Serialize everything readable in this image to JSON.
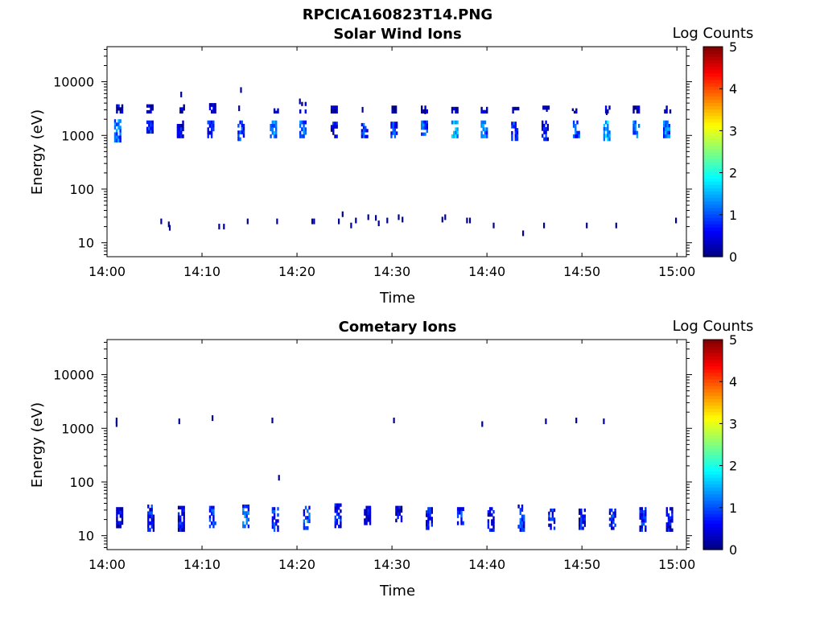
{
  "figure_title": "RPCICA160823T14.PNG",
  "chart_data": [
    {
      "type": "heatmap",
      "title": "Solar Wind Ions",
      "xlabel": "Time",
      "ylabel": "Energy (eV)",
      "x_ticks": [
        "14:00",
        "14:10",
        "14:20",
        "14:30",
        "14:40",
        "14:50",
        "15:00"
      ],
      "x_range_min": [
        0,
        61
      ],
      "y_ticks": [
        "10",
        "100",
        "1000",
        "10000"
      ],
      "y_scale": "log",
      "ylim": [
        5.5,
        45000
      ],
      "colorbar": {
        "label": "Log Counts",
        "ticks": [
          "0",
          "1",
          "2",
          "3",
          "4",
          "5"
        ],
        "range": [
          0,
          5
        ],
        "colormap": "jet"
      },
      "bursts": [
        {
          "t": 1.0,
          "emin": 750,
          "emax": 2000,
          "lc": 1.2
        },
        {
          "t": 1.2,
          "emin": 2600,
          "emax": 3800,
          "lc": 0.5
        },
        {
          "t": 4.4,
          "emin": 1100,
          "emax": 1900,
          "lc": 0.8
        },
        {
          "t": 4.4,
          "emin": 2600,
          "emax": 3800,
          "lc": 0.3
        },
        {
          "t": 7.6,
          "emin": 900,
          "emax": 1900,
          "lc": 0.6
        },
        {
          "t": 7.7,
          "emin": 2600,
          "emax": 3800,
          "lc": 0.3
        },
        {
          "t": 10.8,
          "emin": 900,
          "emax": 1900,
          "lc": 0.8
        },
        {
          "t": 11.0,
          "emin": 2600,
          "emax": 4000,
          "lc": 0.4
        },
        {
          "t": 14.0,
          "emin": 800,
          "emax": 1900,
          "lc": 1.0
        },
        {
          "t": 17.4,
          "emin": 900,
          "emax": 1900,
          "lc": 1.3
        },
        {
          "t": 17.6,
          "emin": 2600,
          "emax": 3200,
          "lc": 0.3
        },
        {
          "t": 20.5,
          "emin": 900,
          "emax": 1900,
          "lc": 1.2
        },
        {
          "t": 20.5,
          "emin": 2600,
          "emax": 4200,
          "lc": 0.5
        },
        {
          "t": 23.8,
          "emin": 900,
          "emax": 1800,
          "lc": 0.7
        },
        {
          "t": 23.8,
          "emin": 2600,
          "emax": 3600,
          "lc": 0.3
        },
        {
          "t": 27.0,
          "emin": 900,
          "emax": 1700,
          "lc": 0.9
        },
        {
          "t": 30.1,
          "emin": 900,
          "emax": 1800,
          "lc": 1.0
        },
        {
          "t": 30.2,
          "emin": 2600,
          "emax": 3600,
          "lc": 0.3
        },
        {
          "t": 33.3,
          "emin": 1000,
          "emax": 1900,
          "lc": 1.1
        },
        {
          "t": 33.3,
          "emin": 2600,
          "emax": 3600,
          "lc": 0.3
        },
        {
          "t": 36.5,
          "emin": 900,
          "emax": 1900,
          "lc": 1.6
        },
        {
          "t": 36.5,
          "emin": 2600,
          "emax": 3400,
          "lc": 0.3
        },
        {
          "t": 39.6,
          "emin": 900,
          "emax": 1900,
          "lc": 1.3
        },
        {
          "t": 39.6,
          "emin": 2600,
          "emax": 3400,
          "lc": 0.3
        },
        {
          "t": 42.8,
          "emin": 800,
          "emax": 1800,
          "lc": 0.9
        },
        {
          "t": 42.9,
          "emin": 2600,
          "emax": 3400,
          "lc": 0.3
        },
        {
          "t": 46.0,
          "emin": 800,
          "emax": 1900,
          "lc": 0.8
        },
        {
          "t": 46.1,
          "emin": 2600,
          "emax": 3600,
          "lc": 0.3
        },
        {
          "t": 49.3,
          "emin": 900,
          "emax": 1900,
          "lc": 1.1
        },
        {
          "t": 49.2,
          "emin": 2600,
          "emax": 3200,
          "lc": 0.3
        },
        {
          "t": 52.5,
          "emin": 800,
          "emax": 1900,
          "lc": 1.5
        },
        {
          "t": 52.5,
          "emin": 2600,
          "emax": 3600,
          "lc": 0.3
        },
        {
          "t": 55.6,
          "emin": 900,
          "emax": 1900,
          "lc": 1.3
        },
        {
          "t": 55.6,
          "emin": 2600,
          "emax": 3600,
          "lc": 0.4
        },
        {
          "t": 58.8,
          "emin": 900,
          "emax": 1900,
          "lc": 1.3
        },
        {
          "t": 58.9,
          "emin": 2600,
          "emax": 3600,
          "lc": 0.4
        }
      ],
      "points": [
        {
          "t": 7.8,
          "e": 5800
        },
        {
          "t": 14.1,
          "e": 7000
        },
        {
          "t": 13.9,
          "e": 3200
        },
        {
          "t": 20.3,
          "e": 4300
        },
        {
          "t": 26.9,
          "e": 3000
        },
        {
          "t": 33.5,
          "e": 2800
        },
        {
          "t": 46.3,
          "e": 3100
        },
        {
          "t": 52.6,
          "e": 2700
        },
        {
          "t": 5.7,
          "e": 25
        },
        {
          "t": 6.5,
          "e": 22
        },
        {
          "t": 6.6,
          "e": 19
        },
        {
          "t": 11.8,
          "e": 20
        },
        {
          "t": 12.3,
          "e": 20
        },
        {
          "t": 14.8,
          "e": 25
        },
        {
          "t": 17.9,
          "e": 25
        },
        {
          "t": 21.6,
          "e": 25
        },
        {
          "t": 21.8,
          "e": 25
        },
        {
          "t": 24.4,
          "e": 25
        },
        {
          "t": 24.8,
          "e": 34
        },
        {
          "t": 25.7,
          "e": 21
        },
        {
          "t": 26.2,
          "e": 26
        },
        {
          "t": 27.5,
          "e": 30
        },
        {
          "t": 28.3,
          "e": 29
        },
        {
          "t": 28.6,
          "e": 23
        },
        {
          "t": 29.5,
          "e": 26
        },
        {
          "t": 30.7,
          "e": 30
        },
        {
          "t": 31.1,
          "e": 27
        },
        {
          "t": 35.3,
          "e": 27
        },
        {
          "t": 35.6,
          "e": 30
        },
        {
          "t": 37.9,
          "e": 26
        },
        {
          "t": 38.2,
          "e": 26
        },
        {
          "t": 40.7,
          "e": 21
        },
        {
          "t": 43.8,
          "e": 15
        },
        {
          "t": 46.0,
          "e": 21
        },
        {
          "t": 50.5,
          "e": 21
        },
        {
          "t": 53.6,
          "e": 21
        },
        {
          "t": 59.9,
          "e": 26
        }
      ]
    },
    {
      "type": "heatmap",
      "title": "Cometary Ions",
      "xlabel": "Time",
      "ylabel": "Energy (eV)",
      "x_ticks": [
        "14:00",
        "14:10",
        "14:20",
        "14:30",
        "14:40",
        "14:50",
        "15:00"
      ],
      "x_range_min": [
        0,
        61
      ],
      "y_ticks": [
        "10",
        "100",
        "1000",
        "10000"
      ],
      "y_scale": "log",
      "ylim": [
        5.5,
        45000
      ],
      "colorbar": {
        "label": "Log Counts",
        "ticks": [
          "0",
          "1",
          "2",
          "3",
          "4",
          "5"
        ],
        "range": [
          0,
          5
        ],
        "colormap": "jet"
      },
      "bursts": [
        {
          "t": 1.2,
          "emin": 14,
          "emax": 34,
          "lc": 0.5
        },
        {
          "t": 4.5,
          "emin": 12,
          "emax": 38,
          "lc": 0.8
        },
        {
          "t": 7.7,
          "emin": 12,
          "emax": 36,
          "lc": 0.7
        },
        {
          "t": 11.0,
          "emin": 14,
          "emax": 36,
          "lc": 0.9
        },
        {
          "t": 14.5,
          "emin": 14,
          "emax": 38,
          "lc": 1.2
        },
        {
          "t": 17.6,
          "emin": 12,
          "emax": 34,
          "lc": 0.9
        },
        {
          "t": 20.9,
          "emin": 13,
          "emax": 36,
          "lc": 1.1
        },
        {
          "t": 24.2,
          "emin": 14,
          "emax": 40,
          "lc": 0.8
        },
        {
          "t": 27.3,
          "emin": 16,
          "emax": 36,
          "lc": 0.6
        },
        {
          "t": 30.6,
          "emin": 18,
          "emax": 36,
          "lc": 0.5
        },
        {
          "t": 33.8,
          "emin": 13,
          "emax": 34,
          "lc": 0.7
        },
        {
          "t": 37.1,
          "emin": 16,
          "emax": 34,
          "lc": 0.8
        },
        {
          "t": 40.3,
          "emin": 12,
          "emax": 34,
          "lc": 0.7
        },
        {
          "t": 43.5,
          "emin": 12,
          "emax": 38,
          "lc": 0.9
        },
        {
          "t": 46.7,
          "emin": 13,
          "emax": 32,
          "lc": 0.8
        },
        {
          "t": 49.9,
          "emin": 13,
          "emax": 32,
          "lc": 0.7
        },
        {
          "t": 53.1,
          "emin": 13,
          "emax": 32,
          "lc": 0.8
        },
        {
          "t": 56.3,
          "emin": 12,
          "emax": 34,
          "lc": 0.8
        },
        {
          "t": 59.1,
          "emin": 12,
          "emax": 34,
          "lc": 0.6
        }
      ],
      "points": [
        {
          "t": 1.0,
          "e": 1400
        },
        {
          "t": 1.0,
          "e": 1200
        },
        {
          "t": 7.6,
          "e": 1350
        },
        {
          "t": 11.1,
          "e": 1550
        },
        {
          "t": 17.4,
          "e": 1400
        },
        {
          "t": 18.1,
          "e": 120
        },
        {
          "t": 30.2,
          "e": 1400
        },
        {
          "t": 39.5,
          "e": 1200
        },
        {
          "t": 46.2,
          "e": 1350
        },
        {
          "t": 49.4,
          "e": 1400
        },
        {
          "t": 52.3,
          "e": 1350
        }
      ]
    }
  ]
}
